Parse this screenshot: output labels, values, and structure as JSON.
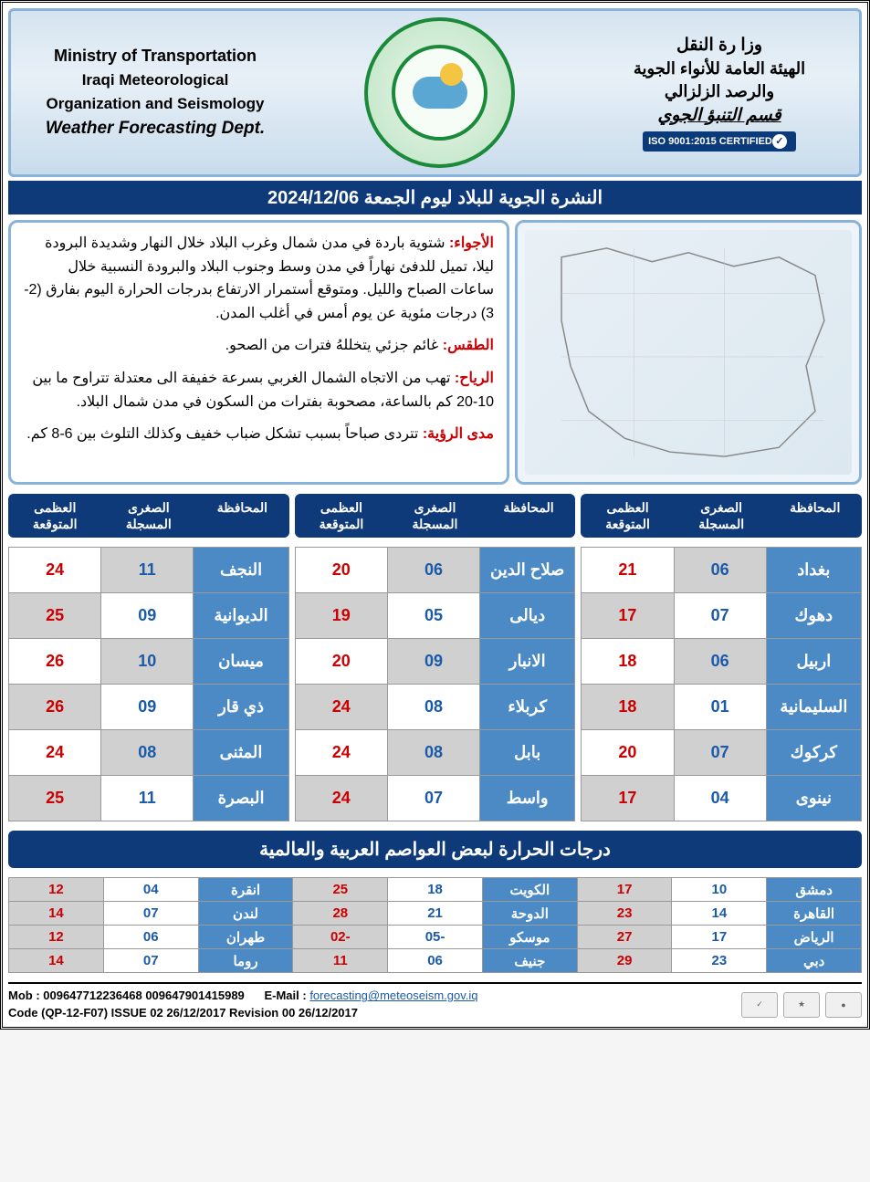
{
  "header": {
    "en": {
      "line1": "Ministry of Transportation",
      "line2": "Iraqi Meteorological",
      "line3": "Organization and Seismology",
      "line4": "Weather Forecasting Dept."
    },
    "ar": {
      "line1": "وزا رة النقل",
      "line2": "الهيئة العامة للأنواء الجوية",
      "line3": "والرصد الزلزالي",
      "line4": "قسم التنبؤ الجوي"
    },
    "iso_text": "ISO 9001:2015 CERTIFIED"
  },
  "title_bar": "النشرة الجوية للبلاد ليوم الجمعة 2024/12/06",
  "forecast": {
    "atmosphere_label": "الأجواء:",
    "atmosphere_text": " شتوية باردة في مدن شمال وغرب البلاد خلال النهار وشديدة البرودة ليلا، تميل للدفئ نهاراً في مدن وسط وجنوب البلاد والبرودة النسبية خلال ساعات الصباح والليل. ومتوقع أستمرار الارتفاع بدرجات الحرارة اليوم بفارق (2-3) درجات مئوية عن يوم أمس في أغلب المدن.",
    "weather_label": "الطقس:",
    "weather_text": "  غائم جزئي يتخللهُ فترات من الصحو.",
    "wind_label": "الرياح:",
    "wind_text": " تهب من الاتجاه الشمال الغربي بسرعة خفيفة الى معتدلة تتراوح ما بين 10-20 كم بالساعة، مصحوبة بفترات من السكون في مدن شمال البلاد.",
    "visibility_label": "مدى الرؤية:",
    "visibility_text": " تتردى صباحاً بسبب تشكل ضباب خفيف وكذلك التلوث  بين 6-8 كم."
  },
  "col_headers": {
    "province": "المحافظة",
    "min": "الصغرى المسجلة",
    "max": "العظمى المتوقعة"
  },
  "iraq_cols": [
    [
      {
        "city": "بغداد",
        "min": "06",
        "max": "21"
      },
      {
        "city": "دهوك",
        "min": "07",
        "max": "17"
      },
      {
        "city": "اربيل",
        "min": "06",
        "max": "18"
      },
      {
        "city": "السليمانية",
        "min": "01",
        "max": "18"
      },
      {
        "city": "كركوك",
        "min": "07",
        "max": "20"
      },
      {
        "city": "نينوى",
        "min": "04",
        "max": "17"
      }
    ],
    [
      {
        "city": "صلاح الدين",
        "min": "06",
        "max": "20"
      },
      {
        "city": "ديالى",
        "min": "05",
        "max": "19"
      },
      {
        "city": "الانبار",
        "min": "09",
        "max": "20"
      },
      {
        "city": "كربلاء",
        "min": "08",
        "max": "24"
      },
      {
        "city": "بابل",
        "min": "08",
        "max": "24"
      },
      {
        "city": "واسط",
        "min": "07",
        "max": "24"
      }
    ],
    [
      {
        "city": "النجف",
        "min": "11",
        "max": "24"
      },
      {
        "city": "الديوانية",
        "min": "09",
        "max": "25"
      },
      {
        "city": "ميسان",
        "min": "10",
        "max": "26"
      },
      {
        "city": "ذي قار",
        "min": "09",
        "max": "26"
      },
      {
        "city": "المثنى",
        "min": "08",
        "max": "24"
      },
      {
        "city": "البصرة",
        "min": "11",
        "max": "25"
      }
    ]
  ],
  "intl_title": "درجات الحرارة لبعض العواصم العربية والعالمية",
  "intl_rows": [
    [
      {
        "city": "دمشق",
        "min": "10",
        "max": "17"
      },
      {
        "city": "الكويت",
        "min": "18",
        "max": "25"
      },
      {
        "city": "انقرة",
        "min": "04",
        "max": "12"
      }
    ],
    [
      {
        "city": "القاهرة",
        "min": "14",
        "max": "23"
      },
      {
        "city": "الدوحة",
        "min": "21",
        "max": "28"
      },
      {
        "city": "لندن",
        "min": "07",
        "max": "14"
      }
    ],
    [
      {
        "city": "الرياض",
        "min": "17",
        "max": "27"
      },
      {
        "city": "موسكو",
        "min": "-05",
        "max": "-02"
      },
      {
        "city": "طهران",
        "min": "06",
        "max": "12"
      }
    ],
    [
      {
        "city": "دبي",
        "min": "23",
        "max": "29"
      },
      {
        "city": "جنيف",
        "min": "06",
        "max": "11"
      },
      {
        "city": "روما",
        "min": "07",
        "max": "14"
      }
    ]
  ],
  "footer": {
    "mob": "Mob : 009647712236468   009647901415989",
    "email_label": "E-Mail :",
    "email": "forecasting@meteoseism.gov.iq",
    "code": "Code (QP-12-F07)   ISSUE 02   26/12/2017 Revision   00   26/12/2017"
  }
}
